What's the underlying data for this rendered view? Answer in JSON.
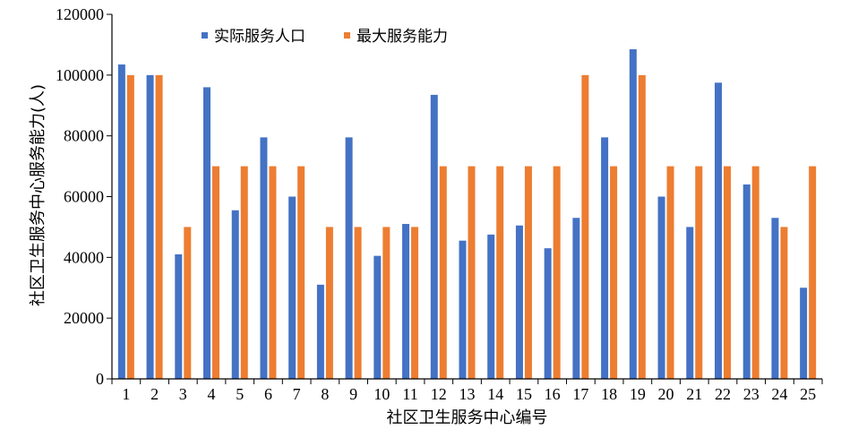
{
  "chart_data": {
    "type": "bar",
    "title": "",
    "xlabel": "社区卫生服务中心编号",
    "ylabel": "社区卫生服务中心服务能力(人)",
    "ylim": [
      0,
      120000
    ],
    "yticks": [
      0,
      20000,
      40000,
      60000,
      80000,
      100000,
      120000
    ],
    "categories": [
      "1",
      "2",
      "3",
      "4",
      "5",
      "6",
      "7",
      "8",
      "9",
      "10",
      "11",
      "12",
      "13",
      "14",
      "15",
      "16",
      "17",
      "18",
      "19",
      "20",
      "21",
      "22",
      "23",
      "24",
      "25"
    ],
    "legend_position": "top-center",
    "grid": false,
    "series": [
      {
        "name": "实际服务人口",
        "color": "#4472c4",
        "values": [
          103500,
          100000,
          41000,
          96000,
          55500,
          79500,
          60000,
          31000,
          79500,
          40500,
          51000,
          93500,
          45500,
          47500,
          50500,
          43000,
          53000,
          79500,
          108500,
          60000,
          50000,
          97500,
          64000,
          53000,
          30000
        ]
      },
      {
        "name": "最大服务能力",
        "color": "#ed7d31",
        "values": [
          100000,
          100000,
          50000,
          70000,
          70000,
          70000,
          70000,
          50000,
          50000,
          50000,
          50000,
          70000,
          70000,
          70000,
          70000,
          70000,
          100000,
          70000,
          100000,
          70000,
          70000,
          70000,
          70000,
          50000,
          70000
        ]
      }
    ]
  }
}
